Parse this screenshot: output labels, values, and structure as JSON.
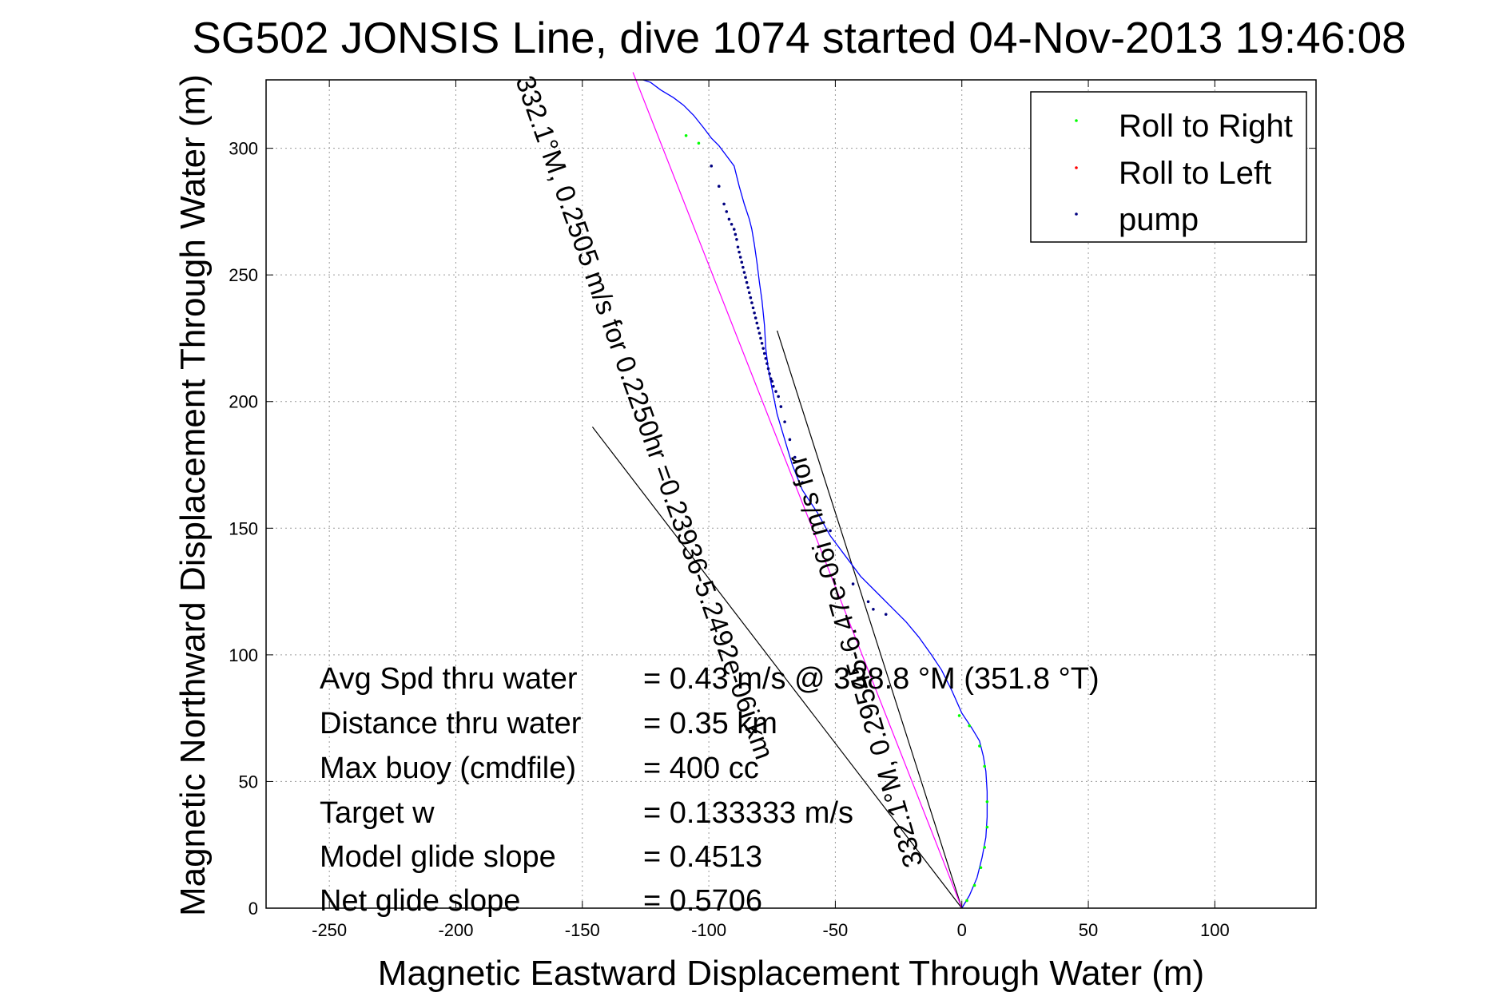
{
  "chart_data": {
    "type": "line",
    "title": "SG502 JONSIS Line, dive 1074 started 04-Nov-2013 19:46:08",
    "xlabel": "Magnetic Eastward Displacement Through Water (m)",
    "ylabel": "Magnetic Northward Displacement Through Water (m)",
    "xlim": [
      -275,
      140
    ],
    "ylim": [
      0,
      327
    ],
    "xticks": [
      -250,
      -200,
      -150,
      -100,
      -50,
      0,
      50,
      100
    ],
    "yticks": [
      0,
      50,
      100,
      150,
      200,
      250,
      300
    ],
    "grid": true,
    "legend": {
      "placement": "top-right",
      "entries": [
        {
          "name": "Roll to Right",
          "color": "#00ff00"
        },
        {
          "name": "Roll to Left",
          "color": "#ff0000"
        },
        {
          "name": "pump",
          "color": "#000080"
        }
      ]
    },
    "track": {
      "color": "#0000ff",
      "x": [
        0,
        3,
        6,
        8,
        9.5,
        10,
        10,
        9.5,
        8.5,
        7,
        4,
        0,
        -4,
        -8,
        -12,
        -17,
        -22,
        -27,
        -33,
        -40,
        -46,
        -52,
        -57,
        -63,
        -67,
        -70,
        -73,
        -75,
        -76.5,
        -77.5,
        -78,
        -79,
        -80,
        -81,
        -82,
        -83,
        -84,
        -86,
        -88,
        -90,
        -93,
        -96,
        -99,
        -102,
        -106,
        -110,
        -114,
        -119,
        -123,
        -126
      ],
      "y": [
        0,
        5,
        12,
        20,
        28,
        36,
        46,
        54,
        60,
        66,
        71,
        77,
        86,
        94,
        100,
        107,
        113,
        118,
        124,
        131,
        139,
        147,
        156,
        165,
        175,
        185,
        195,
        205,
        213,
        221,
        230,
        240,
        247,
        255,
        262,
        268,
        272,
        278,
        285,
        293,
        297,
        301,
        304,
        308,
        313,
        317,
        320,
        323,
        326,
        327
      ]
    },
    "roll_right": {
      "color": "#00ff00",
      "x": [
        2,
        5,
        7.5,
        9,
        10,
        10,
        9,
        7,
        3,
        -1,
        -104,
        -109
      ],
      "y": [
        3,
        9,
        16,
        24,
        32,
        42,
        56,
        64,
        72,
        76,
        302,
        305
      ]
    },
    "pump": {
      "color": "#000080",
      "x": [
        -30,
        -35,
        -37,
        -43,
        -52,
        -63,
        -66,
        -68,
        -70,
        -71.5,
        -72.5,
        -73.5,
        -74.5,
        -75,
        -75.5,
        -76,
        -76.5,
        -77,
        -77.5,
        -78,
        -78.5,
        -79,
        -79.5,
        -80,
        -80.5,
        -81,
        -81.5,
        -82,
        -82.5,
        -83,
        -83.5,
        -84,
        -84.5,
        -85,
        -85.5,
        -86,
        -86.5,
        -87,
        -87.5,
        -88,
        -88.5,
        -89,
        -89.5,
        -90,
        -91,
        -92,
        -93,
        -94,
        -96,
        -99
      ],
      "y": [
        116,
        118,
        121,
        128,
        149,
        168,
        178,
        185,
        192,
        198,
        202,
        204,
        206,
        208,
        209,
        211,
        213,
        215,
        217,
        219,
        221,
        223,
        225,
        227,
        229,
        231,
        233,
        235,
        237,
        239,
        241,
        243,
        245,
        247,
        249,
        251,
        253,
        255,
        257,
        259,
        261,
        264,
        266,
        268,
        270,
        272,
        275,
        278,
        285,
        293
      ]
    },
    "reference_lines": [
      {
        "name": "line1",
        "color": "#000000",
        "x": [
          0,
          -146
        ],
        "y": [
          0,
          190
        ]
      },
      {
        "name": "line2",
        "color": "#000000",
        "x": [
          0,
          -73
        ],
        "y": [
          0,
          228
        ]
      },
      {
        "name": "line3",
        "color": "#ff00ff",
        "x": [
          0,
          -130
        ],
        "y": [
          0,
          330
        ]
      }
    ],
    "annotations": {
      "diag_upper": "332.1°M,  0.2505 m/s for 0.2250hr =0.23936-5.2492e-06i km",
      "diag_lower": "332.1°M,  0.29545-6.47e-06i m/s for"
    },
    "stats": [
      {
        "label": "Avg Spd thru water",
        "value": "=  0.43 m/s @ 338.8 °M (351.8 °T)"
      },
      {
        "label": "Distance thru water",
        "value": "=  0.35 km"
      },
      {
        "label": "Max buoy (cmdfile)",
        "value": "= 400 cc"
      },
      {
        "label": "Target w",
        "value": "= 0.133333 m/s"
      },
      {
        "label": "Model glide slope",
        "value": "= 0.4513"
      },
      {
        "label": "Net glide slope",
        "value": "= 0.5706"
      }
    ]
  }
}
